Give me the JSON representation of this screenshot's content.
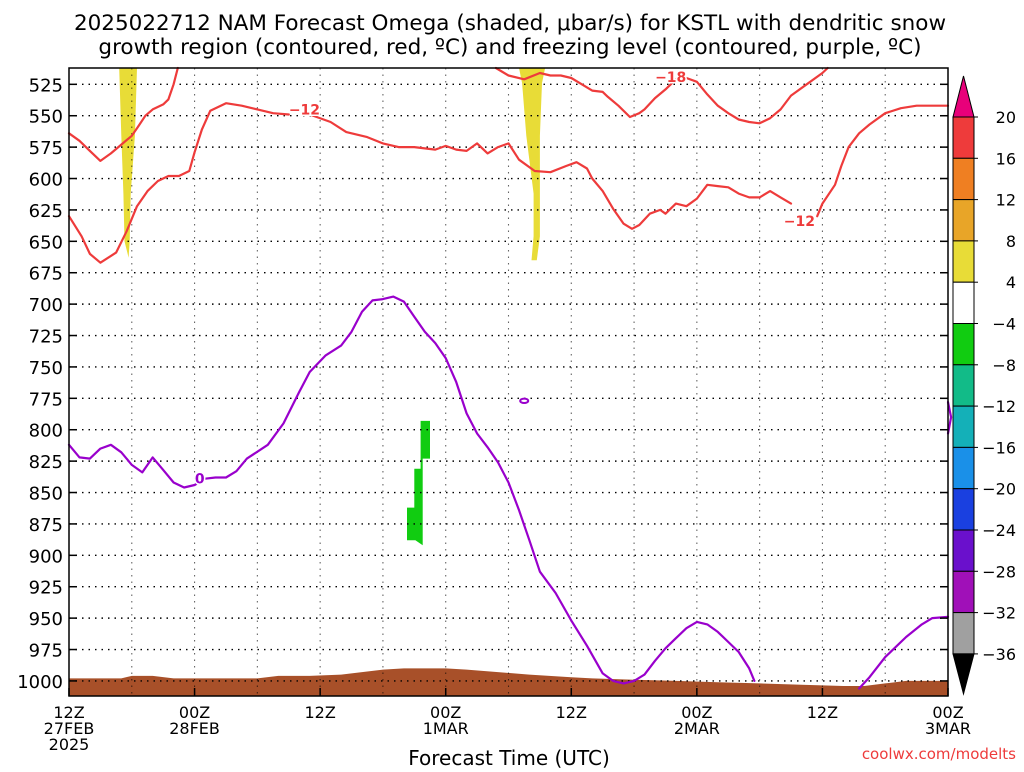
{
  "title_lines": [
    "2025022712 NAM Forecast Omega (shaded, μbar/s) for KSTL with dendritic snow",
    "growth region (contoured, red, ºC) and freezing level (contoured, purple, ºC)"
  ],
  "credit": "coolwx.com/modelts",
  "chart_data": {
    "type": "contour",
    "xlabel": "Forecast Time (UTC)",
    "ylabel": "",
    "x_range_hours": [
      0,
      84
    ],
    "y_range_hpa": [
      512,
      1012
    ],
    "x_ticks": [
      {
        "h": 0,
        "lines": [
          "12Z",
          "27FEB",
          "2025"
        ]
      },
      {
        "h": 12,
        "lines": [
          "00Z",
          "28FEB"
        ]
      },
      {
        "h": 24,
        "lines": [
          "12Z"
        ]
      },
      {
        "h": 36,
        "lines": [
          "00Z",
          "1MAR"
        ]
      },
      {
        "h": 48,
        "lines": [
          "12Z"
        ]
      },
      {
        "h": 60,
        "lines": [
          "00Z",
          "2MAR"
        ]
      },
      {
        "h": 72,
        "lines": [
          "12Z"
        ]
      },
      {
        "h": 84,
        "lines": [
          "00Z",
          "3MAR"
        ]
      }
    ],
    "y_ticks": [
      525,
      550,
      575,
      600,
      625,
      650,
      675,
      700,
      725,
      750,
      775,
      800,
      825,
      850,
      875,
      900,
      925,
      950,
      975,
      1000
    ],
    "grid": true,
    "colorbar": {
      "units": "μbar/s",
      "labels": [
        "20",
        "16",
        "12",
        "8",
        "4",
        "−4",
        "−8",
        "−12",
        "−16",
        "−20",
        "−24",
        "−28",
        "−32",
        "−36"
      ],
      "colors": [
        "#e8007a",
        "#ee3b3b",
        "#ef7f22",
        "#e8a528",
        "#e8dc37",
        "#ffffff",
        "#11cc11",
        "#12bb88",
        "#14b0b8",
        "#1a90e8",
        "#1a40e0",
        "#6a10cc",
        "#a010b8",
        "#a0a0a0",
        "#000000"
      ]
    },
    "contour_labels": [
      {
        "text": "−12",
        "color": "#ee3b3b",
        "h": 22.5,
        "p": 545
      },
      {
        "text": "−18",
        "color": "#ee3b3b",
        "h": 57.5,
        "p": 519
      },
      {
        "text": "−12",
        "color": "#ee3b3b",
        "h": 69.8,
        "p": 634
      },
      {
        "text": "0",
        "color": "#9900cc",
        "h": 12.5,
        "p": 839
      }
    ],
    "series": [
      {
        "kind": "isotherm",
        "color": "#ee3b3b",
        "points": [
          [
            0,
            564
          ],
          [
            1,
            570
          ],
          [
            2,
            578
          ],
          [
            3,
            586
          ],
          [
            4,
            580
          ],
          [
            5,
            573
          ],
          [
            6,
            566
          ],
          [
            6.5,
            560
          ],
          [
            7.3,
            550
          ],
          [
            8,
            545
          ],
          [
            9,
            541
          ],
          [
            9.5,
            537
          ],
          [
            10,
            525
          ],
          [
            10.4,
            512
          ]
        ]
      },
      {
        "kind": "isotherm",
        "color": "#ee3b3b",
        "points": [
          [
            0,
            630
          ],
          [
            1.2,
            646
          ],
          [
            2,
            660
          ],
          [
            3,
            667
          ],
          [
            4.5,
            659
          ],
          [
            5.5,
            642
          ],
          [
            6.5,
            622
          ],
          [
            7.5,
            610
          ],
          [
            8.5,
            602
          ],
          [
            9.5,
            598
          ],
          [
            10.5,
            598
          ],
          [
            11.5,
            594
          ],
          [
            12,
            579
          ],
          [
            12.7,
            561
          ],
          [
            13.5,
            546
          ],
          [
            15,
            540
          ],
          [
            16.5,
            542
          ],
          [
            18,
            545
          ],
          [
            19.5,
            548
          ],
          [
            21,
            549
          ]
        ]
      },
      {
        "kind": "isotherm",
        "color": "#ee3b3b",
        "points": [
          [
            23,
            549
          ],
          [
            25,
            555
          ],
          [
            26.5,
            563
          ],
          [
            28.5,
            567
          ],
          [
            30,
            572
          ],
          [
            31.5,
            575
          ],
          [
            33,
            575
          ],
          [
            35,
            577
          ],
          [
            36,
            574
          ],
          [
            37,
            577
          ],
          [
            38,
            578
          ],
          [
            39,
            572
          ],
          [
            40,
            580
          ],
          [
            41,
            575
          ],
          [
            42,
            572
          ],
          [
            43,
            585
          ],
          [
            44.5,
            594
          ],
          [
            46,
            595
          ],
          [
            47.5,
            590
          ],
          [
            48.5,
            587
          ],
          [
            49.5,
            592
          ],
          [
            50,
            600
          ],
          [
            51,
            610
          ],
          [
            52,
            624
          ],
          [
            53,
            636
          ],
          [
            53.8,
            640
          ],
          [
            54.5,
            637
          ],
          [
            55.5,
            628
          ],
          [
            56.5,
            625
          ],
          [
            57,
            628
          ],
          [
            58,
            620
          ],
          [
            59,
            622
          ],
          [
            60,
            616
          ],
          [
            61,
            605
          ],
          [
            62,
            606
          ],
          [
            63,
            607
          ],
          [
            64,
            612
          ],
          [
            65,
            615
          ],
          [
            66,
            615
          ],
          [
            67,
            610
          ],
          [
            68,
            615
          ],
          [
            69,
            620
          ]
        ]
      },
      {
        "kind": "isotherm",
        "color": "#ee3b3b",
        "points": [
          [
            71.5,
            630
          ],
          [
            72,
            620
          ],
          [
            73.2,
            605
          ],
          [
            73.8,
            590
          ],
          [
            74.5,
            575
          ],
          [
            75.5,
            564
          ],
          [
            76.5,
            557
          ],
          [
            78,
            548
          ],
          [
            79.5,
            544
          ],
          [
            81,
            542
          ],
          [
            82.5,
            542
          ],
          [
            84,
            542
          ]
        ]
      },
      {
        "kind": "isotherm",
        "color": "#ee3b3b",
        "points": [
          [
            40.8,
            512
          ],
          [
            42,
            518
          ],
          [
            43.5,
            521
          ],
          [
            45,
            516
          ],
          [
            46,
            518
          ],
          [
            47,
            518
          ],
          [
            48,
            520
          ],
          [
            49,
            525
          ],
          [
            50,
            530
          ],
          [
            51,
            531
          ],
          [
            51.5,
            535
          ],
          [
            52.5,
            542
          ],
          [
            53.6,
            551
          ],
          [
            54.5,
            548
          ],
          [
            55,
            545
          ],
          [
            56,
            536
          ],
          [
            57,
            529
          ],
          [
            58,
            521
          ],
          [
            59,
            520
          ],
          [
            60,
            523
          ],
          [
            61,
            533
          ],
          [
            62,
            542
          ],
          [
            63,
            548
          ],
          [
            64,
            553
          ],
          [
            65,
            555
          ],
          [
            66,
            556
          ],
          [
            67,
            552
          ],
          [
            68,
            545
          ],
          [
            69,
            534
          ],
          [
            70.5,
            525
          ],
          [
            72,
            516
          ],
          [
            72.5,
            512
          ]
        ]
      },
      {
        "kind": "freezing_level",
        "color": "#9900cc",
        "points": [
          [
            0,
            812
          ],
          [
            1,
            822
          ],
          [
            2,
            823
          ],
          [
            3,
            815
          ],
          [
            4,
            812
          ],
          [
            5,
            818
          ],
          [
            6,
            828
          ],
          [
            7,
            834
          ],
          [
            8,
            822
          ],
          [
            9,
            832
          ],
          [
            10,
            842
          ],
          [
            11,
            846
          ],
          [
            12,
            844
          ],
          [
            13,
            839
          ],
          [
            14,
            838
          ],
          [
            15,
            838
          ],
          [
            16,
            833
          ],
          [
            17,
            823
          ],
          [
            19,
            812
          ],
          [
            20.5,
            795
          ],
          [
            22,
            770
          ],
          [
            23,
            754
          ],
          [
            24.5,
            741
          ],
          [
            26,
            733
          ],
          [
            27,
            722
          ],
          [
            28,
            706
          ],
          [
            29,
            697
          ],
          [
            30,
            696
          ],
          [
            31,
            694
          ],
          [
            32,
            698
          ],
          [
            33,
            710
          ],
          [
            34,
            722
          ],
          [
            35,
            731
          ],
          [
            36,
            743
          ],
          [
            37,
            762
          ],
          [
            38,
            787
          ],
          [
            39,
            803
          ],
          [
            40,
            814
          ],
          [
            41,
            826
          ],
          [
            42,
            842
          ],
          [
            43,
            864
          ],
          [
            44,
            888
          ],
          [
            45,
            913
          ],
          [
            46.5,
            930
          ],
          [
            48,
            952
          ],
          [
            49.5,
            972
          ],
          [
            51,
            994
          ],
          [
            52,
            1000
          ],
          [
            53,
            1002
          ],
          [
            54,
            1000
          ],
          [
            55,
            995
          ],
          [
            56,
            984
          ],
          [
            57,
            974
          ],
          [
            58,
            966
          ],
          [
            59,
            958
          ],
          [
            60,
            953
          ],
          [
            61,
            955
          ],
          [
            62,
            961
          ],
          [
            63,
            969
          ],
          [
            64,
            977
          ],
          [
            65,
            990
          ],
          [
            65.5,
            1000
          ]
        ]
      },
      {
        "kind": "freezing_level",
        "color": "#9900cc",
        "points": [
          [
            75.5,
            1006
          ],
          [
            76.5,
            997
          ],
          [
            78,
            981
          ],
          [
            80,
            965
          ],
          [
            81.5,
            955
          ],
          [
            82.5,
            950
          ],
          [
            84,
            949
          ]
        ]
      },
      {
        "kind": "freezing_level",
        "color": "#9900cc",
        "points": [
          [
            84,
            778
          ],
          [
            84.3,
            790
          ],
          [
            84,
            803
          ]
        ]
      }
    ],
    "shaded": [
      {
        "color": "#e8dc37",
        "value_range": [
          4,
          8
        ],
        "polygon": [
          [
            4.8,
            512
          ],
          [
            6.5,
            512
          ],
          [
            6.3,
            566
          ],
          [
            5.9,
            612
          ],
          [
            5.8,
            650
          ],
          [
            5.7,
            663
          ],
          [
            5.3,
            650
          ],
          [
            5.2,
            612
          ],
          [
            5.0,
            566
          ]
        ]
      },
      {
        "color": "#e8dc37",
        "value_range": [
          4,
          8
        ],
        "polygon": [
          [
            43.0,
            512
          ],
          [
            45.5,
            512
          ],
          [
            45.2,
            524
          ],
          [
            45.0,
            566
          ],
          [
            45.0,
            612
          ],
          [
            45.0,
            646
          ],
          [
            44.7,
            665
          ],
          [
            44.2,
            665
          ],
          [
            44.4,
            646
          ],
          [
            44.4,
            612
          ],
          [
            43.7,
            566
          ],
          [
            43.3,
            524
          ]
        ]
      },
      {
        "color": "#11cc11",
        "value_range": [
          -8,
          -4
        ],
        "polygon": [
          [
            33.6,
            793
          ],
          [
            34.5,
            793
          ],
          [
            34.5,
            823
          ],
          [
            33.8,
            823
          ],
          [
            33.8,
            862
          ],
          [
            33.8,
            892
          ],
          [
            33.1,
            888
          ],
          [
            32.3,
            888
          ],
          [
            32.3,
            862
          ],
          [
            33.0,
            862
          ],
          [
            33.0,
            831
          ],
          [
            33.6,
            831
          ]
        ]
      },
      {
        "color": "#a85029",
        "value_range": [
          "terrain",
          "terrain"
        ],
        "polygon": [
          [
            0,
            998
          ],
          [
            3,
            998
          ],
          [
            5,
            998
          ],
          [
            6,
            996
          ],
          [
            8,
            996
          ],
          [
            10,
            998
          ],
          [
            14,
            998
          ],
          [
            18,
            998
          ],
          [
            20,
            996
          ],
          [
            23,
            996
          ],
          [
            26,
            995
          ],
          [
            28,
            993
          ],
          [
            30,
            991
          ],
          [
            32,
            990
          ],
          [
            36,
            990
          ],
          [
            38,
            991
          ],
          [
            41,
            993
          ],
          [
            44,
            995
          ],
          [
            48,
            997
          ],
          [
            50,
            998
          ],
          [
            54,
            999
          ],
          [
            58,
            1000
          ],
          [
            62,
            1001
          ],
          [
            66,
            1002
          ],
          [
            70,
            1003
          ],
          [
            74,
            1004
          ],
          [
            76,
            1004
          ],
          [
            78,
            1002
          ],
          [
            80,
            1000
          ],
          [
            84,
            1000
          ],
          [
            84,
            1012
          ],
          [
            0,
            1012
          ]
        ]
      }
    ]
  }
}
